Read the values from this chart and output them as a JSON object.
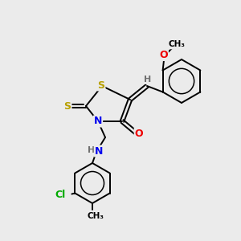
{
  "background_color": "#ebebeb",
  "bond_color": "#000000",
  "atom_colors": {
    "S": "#b8a000",
    "N": "#0000ee",
    "O": "#ee0000",
    "Cl": "#00aa00",
    "H": "#707070",
    "C": "#000000"
  },
  "figsize": [
    3.0,
    3.0
  ],
  "dpi": 100,
  "xlim": [
    0,
    300
  ],
  "ylim": [
    0,
    300
  ]
}
